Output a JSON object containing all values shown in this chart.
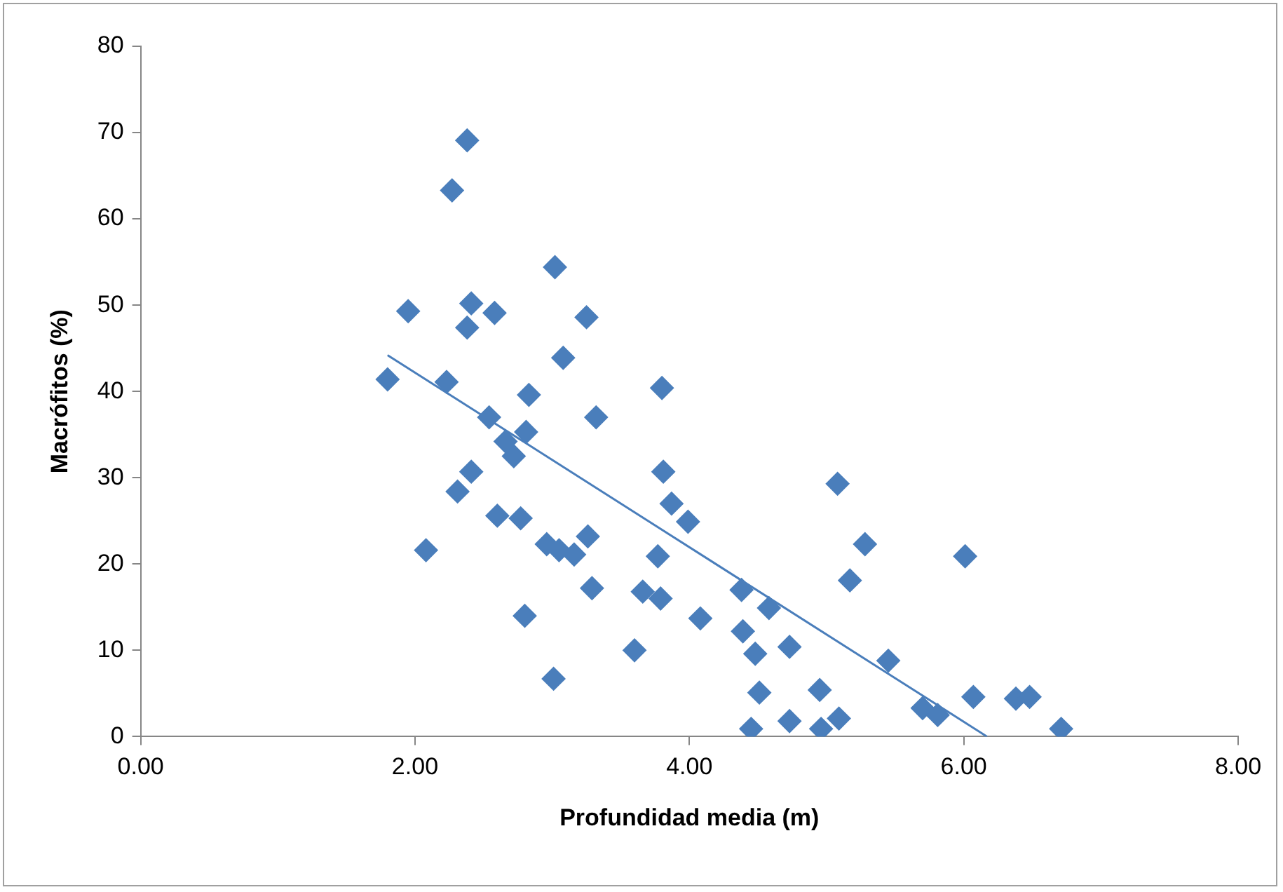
{
  "chart_data": {
    "type": "scatter",
    "xlabel": "Profundidad media (m)",
    "ylabel": "Macrófitos (%)",
    "xlim": [
      0,
      8
    ],
    "xticks": [
      {
        "value": 0,
        "label": "0.00"
      },
      {
        "value": 2,
        "label": "2.00"
      },
      {
        "value": 4,
        "label": "4.00"
      },
      {
        "value": 6,
        "label": "6.00"
      },
      {
        "value": 8,
        "label": "8.00"
      }
    ],
    "ylim": [
      0,
      80
    ],
    "yticks": [
      0,
      10,
      20,
      30,
      40,
      50,
      60,
      70,
      80
    ],
    "grid": false,
    "legend": false,
    "marker": "diamond",
    "series": [
      {
        "type": "scatter",
        "color": "#4a7ebb",
        "x": [
          2.38,
          2.27,
          3.02,
          1.95,
          2.41,
          2.58,
          2.38,
          3.25,
          3.08,
          1.8,
          2.23,
          3.8,
          2.83,
          3.32,
          2.54,
          2.81,
          2.66,
          2.72,
          3.81,
          2.41,
          2.31,
          3.87,
          2.6,
          2.77,
          3.99,
          2.96,
          3.05,
          3.16,
          3.26,
          2.08,
          3.77,
          3.29,
          3.66,
          3.79,
          2.8,
          4.08,
          3.6,
          3.01,
          4.38,
          4.58,
          4.39,
          4.48,
          4.73,
          4.51,
          4.45,
          4.73,
          4.95,
          4.96,
          5.09,
          5.08,
          5.28,
          5.17,
          5.45,
          5.7,
          5.81,
          6.01,
          6.07,
          6.38,
          6.48,
          6.71
        ],
        "values": [
          69.1,
          63.3,
          54.4,
          49.3,
          50.2,
          49.1,
          47.4,
          48.6,
          43.9,
          41.4,
          41.1,
          40.4,
          39.6,
          37.0,
          37.0,
          35.3,
          34.2,
          32.5,
          30.7,
          30.7,
          28.4,
          27.0,
          25.6,
          25.3,
          24.9,
          22.3,
          21.6,
          21.1,
          23.2,
          21.6,
          20.9,
          17.2,
          16.8,
          16.0,
          14.0,
          13.7,
          10.0,
          6.7,
          17.0,
          14.9,
          12.2,
          9.6,
          10.4,
          5.1,
          0.9,
          1.8,
          5.4,
          0.9,
          2.1,
          29.3,
          22.3,
          18.1,
          8.8,
          3.3,
          2.5,
          20.9,
          4.6,
          4.4,
          4.6,
          0.9
        ]
      },
      {
        "type": "line",
        "color": "#4a7ebb",
        "marker": "none",
        "x": [
          1.8,
          6.17
        ],
        "values": [
          44.2,
          0
        ]
      }
    ]
  }
}
